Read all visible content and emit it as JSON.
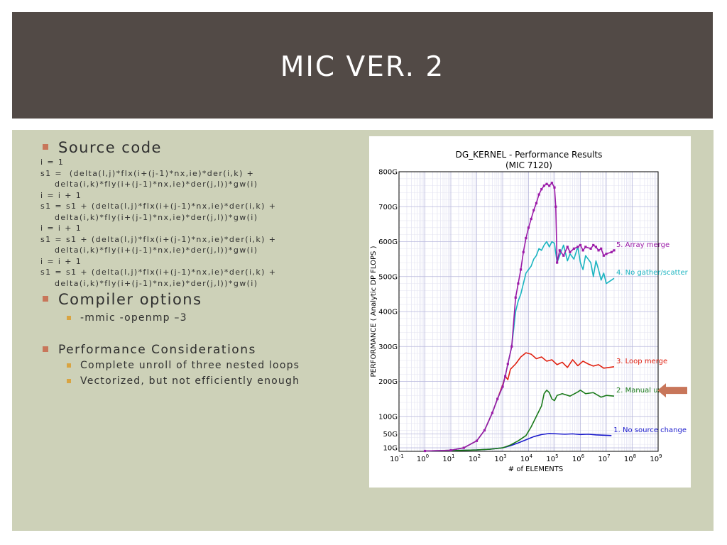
{
  "slide": {
    "title": "MIC VER. 2"
  },
  "bullets": {
    "source_code": "Source code",
    "code_lines": [
      {
        "text": "i = 1",
        "indent": false
      },
      {
        "text": "s1 =  (delta(l,j)*flx(i+(j-1)*nx,ie)*der(i,k) +",
        "indent": false
      },
      {
        "text": "delta(i,k)*fly(i+(j-1)*nx,ie)*der(j,l))*gw(i)",
        "indent": true
      },
      {
        "text": "i = i + 1",
        "indent": false
      },
      {
        "text": "s1 = s1 + (delta(l,j)*flx(i+(j-1)*nx,ie)*der(i,k) +",
        "indent": false
      },
      {
        "text": "delta(i,k)*fly(i+(j-1)*nx,ie)*der(j,l))*gw(i)",
        "indent": true
      },
      {
        "text": "i = i + 1",
        "indent": false
      },
      {
        "text": "s1 = s1 + (delta(l,j)*flx(i+(j-1)*nx,ie)*der(i,k) +",
        "indent": false
      },
      {
        "text": "delta(i,k)*fly(i+(j-1)*nx,ie)*der(j,l))*gw(i)",
        "indent": true
      },
      {
        "text": "i = i + 1",
        "indent": false
      },
      {
        "text": "s1 = s1 + (delta(l,j)*flx(i+(j-1)*nx,ie)*der(i,k) +",
        "indent": false
      },
      {
        "text": "delta(i,k)*fly(i+(j-1)*nx,ie)*der(j,l))*gw(i)",
        "indent": true
      }
    ],
    "compiler_options": "Compiler options",
    "compiler_flags": "-mmic -openmp –3",
    "performance": "Performance Considerations",
    "perf_items": [
      "Complete unroll of three nested loops",
      "Vectorized, but not efficiently enough"
    ],
    "accent_color": "#c8765a",
    "sub_accent_color": "#d9a441"
  },
  "chart_data": {
    "type": "line",
    "title": "DG_KERNEL - Performance Results",
    "subtitle": "(MIC 7120)",
    "xlabel": "# of ELEMENTS",
    "ylabel": "PERFORMANCE ( Analytic DP FLOPS )",
    "x_scale": "log",
    "xlim": [
      -1,
      9
    ],
    "ylim": [
      0,
      800
    ],
    "x_ticks": [
      {
        "exp": -1,
        "base": "10",
        "sup": "-1"
      },
      {
        "exp": 0,
        "base": "10",
        "sup": "0"
      },
      {
        "exp": 1,
        "base": "10",
        "sup": "1"
      },
      {
        "exp": 2,
        "base": "10",
        "sup": "2"
      },
      {
        "exp": 3,
        "base": "10",
        "sup": "3"
      },
      {
        "exp": 4,
        "base": "10",
        "sup": "4"
      },
      {
        "exp": 5,
        "base": "10",
        "sup": "5"
      },
      {
        "exp": 6,
        "base": "10",
        "sup": "6"
      },
      {
        "exp": 7,
        "base": "10",
        "sup": "7"
      },
      {
        "exp": 8,
        "base": "10",
        "sup": "8"
      },
      {
        "exp": 9,
        "base": "10",
        "sup": "9"
      }
    ],
    "y_ticks": [
      {
        "value": 10,
        "label": "10G"
      },
      {
        "value": 50,
        "label": "50G"
      },
      {
        "value": 100,
        "label": "100G"
      },
      {
        "value": 200,
        "label": "200G"
      },
      {
        "value": 300,
        "label": "300G"
      },
      {
        "value": 400,
        "label": "400G"
      },
      {
        "value": 500,
        "label": "500G"
      },
      {
        "value": 600,
        "label": "600G"
      },
      {
        "value": 700,
        "label": "700G"
      },
      {
        "value": 800,
        "label": "800G"
      }
    ],
    "grid": true,
    "legend": "inline labels at right end of each series",
    "arrow_target": "2. Manual unrolling",
    "arrow_color": "#c8765a",
    "series": [
      {
        "name": "1. No source change",
        "color": "#1a1acc",
        "x": [
          0,
          1,
          2,
          2.5,
          3,
          3.3,
          3.6,
          3.9,
          4.2,
          4.5,
          4.8,
          5.1,
          5.4,
          5.7,
          6.0,
          6.3,
          6.6,
          6.9,
          7.2
        ],
        "y": [
          1,
          2,
          4,
          6,
          10,
          16,
          24,
          33,
          42,
          48,
          51,
          50,
          49,
          50,
          48,
          49,
          47,
          46,
          45
        ]
      },
      {
        "name": "2. Manual unrolling",
        "color": "#1a7a1a",
        "x": [
          0,
          1,
          2,
          2.5,
          3,
          3.3,
          3.6,
          3.9,
          4.1,
          4.3,
          4.5,
          4.6,
          4.7,
          4.8,
          4.9,
          5.0,
          5.1,
          5.3,
          5.6,
          5.9,
          6.0,
          6.2,
          6.5,
          6.8,
          7.0,
          7.3
        ],
        "y": [
          1,
          2,
          4,
          6,
          10,
          18,
          30,
          45,
          70,
          100,
          130,
          165,
          175,
          168,
          150,
          145,
          160,
          165,
          158,
          170,
          175,
          165,
          168,
          155,
          160,
          158
        ]
      },
      {
        "name": "3. Loop merge",
        "color": "#e02010",
        "x": [
          0,
          1,
          1.5,
          2,
          2.3,
          2.6,
          2.8,
          3.0,
          3.1,
          3.2,
          3.3,
          3.5,
          3.7,
          3.9,
          4.1,
          4.3,
          4.5,
          4.7,
          4.9,
          5.1,
          5.3,
          5.5,
          5.7,
          5.9,
          6.1,
          6.3,
          6.5,
          6.7,
          6.9,
          7.1,
          7.3
        ],
        "y": [
          1,
          3,
          10,
          30,
          60,
          110,
          150,
          190,
          215,
          205,
          235,
          250,
          270,
          282,
          278,
          265,
          270,
          258,
          262,
          248,
          255,
          240,
          262,
          245,
          258,
          250,
          244,
          248,
          238,
          240,
          242
        ]
      },
      {
        "name": "4. No gather/scatter",
        "color": "#1ab4c0",
        "x": [
          0,
          1,
          1.5,
          2,
          2.3,
          2.6,
          2.8,
          3.0,
          3.1,
          3.2,
          3.35,
          3.5,
          3.6,
          3.7,
          3.8,
          3.9,
          4.0,
          4.1,
          4.2,
          4.3,
          4.4,
          4.5,
          4.6,
          4.7,
          4.8,
          4.9,
          5.0,
          5.1,
          5.2,
          5.35,
          5.5,
          5.6,
          5.75,
          5.9,
          6.0,
          6.1,
          6.2,
          6.4,
          6.5,
          6.6,
          6.7,
          6.8,
          6.9,
          7.0,
          7.2,
          7.3
        ],
        "y": [
          1,
          3,
          10,
          30,
          60,
          110,
          150,
          185,
          215,
          250,
          300,
          400,
          430,
          450,
          480,
          510,
          520,
          530,
          550,
          560,
          580,
          575,
          590,
          600,
          585,
          600,
          595,
          540,
          560,
          590,
          545,
          565,
          550,
          585,
          540,
          520,
          560,
          540,
          500,
          545,
          520,
          490,
          510,
          480,
          490,
          495
        ]
      },
      {
        "name": "5. Array merge",
        "color": "#9b1aa8",
        "x": [
          0,
          1,
          1.5,
          2,
          2.3,
          2.6,
          2.8,
          3.0,
          3.1,
          3.2,
          3.35,
          3.5,
          3.6,
          3.7,
          3.8,
          3.9,
          4.0,
          4.1,
          4.2,
          4.3,
          4.4,
          4.5,
          4.6,
          4.7,
          4.8,
          4.9,
          5.0,
          5.05,
          5.1,
          5.2,
          5.35,
          5.5,
          5.6,
          5.75,
          5.9,
          6.0,
          6.1,
          6.2,
          6.4,
          6.5,
          6.6,
          6.7,
          6.8,
          6.9,
          7.0,
          7.2,
          7.3
        ],
        "y": [
          1,
          3,
          10,
          30,
          60,
          110,
          150,
          185,
          215,
          250,
          300,
          440,
          480,
          520,
          570,
          610,
          640,
          665,
          690,
          710,
          735,
          750,
          760,
          765,
          760,
          768,
          755,
          700,
          540,
          575,
          560,
          585,
          570,
          580,
          585,
          590,
          575,
          585,
          580,
          590,
          585,
          575,
          580,
          560,
          565,
          570,
          575
        ]
      }
    ]
  }
}
